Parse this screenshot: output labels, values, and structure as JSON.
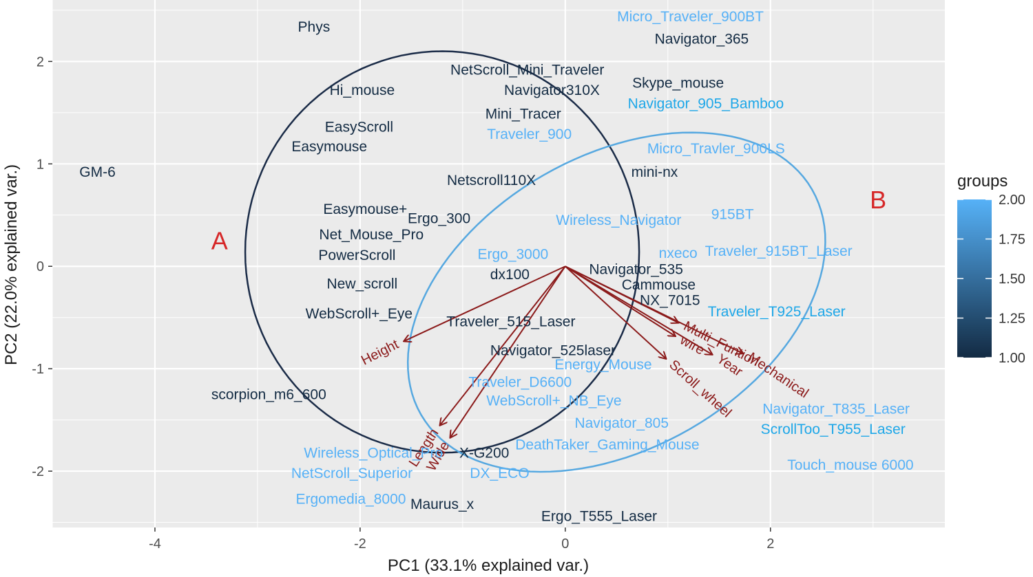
{
  "chart_data": {
    "type": "scatter",
    "subtype": "pca-biplot",
    "xlabel": "PC1 (33.1% explained var.)",
    "ylabel": "PC2 (22.0% explained var.)",
    "xlim": [
      -5.0,
      3.7
    ],
    "ylim": [
      -2.55,
      2.6
    ],
    "x_ticks": [
      -4,
      -2,
      0,
      2
    ],
    "x_tick_labels": [
      "-4",
      "-2",
      "0",
      "2"
    ],
    "y_ticks": [
      -2,
      -1,
      0,
      1,
      2
    ],
    "y_tick_labels": [
      "-2",
      "-1",
      "0",
      "1",
      "2"
    ],
    "grid": true,
    "points": [
      {
        "label": "Phys",
        "x": -2.45,
        "y": 2.33,
        "group": 1.0
      },
      {
        "label": "Micro_Traveler_900BT",
        "x": 1.22,
        "y": 2.43,
        "group": 2.0
      },
      {
        "label": "Navigator_365",
        "x": 1.33,
        "y": 2.21,
        "group": 1.0
      },
      {
        "label": "NetScroll_Mini_Traveler",
        "x": -0.37,
        "y": 1.91,
        "group": 1.0
      },
      {
        "label": "Hi_mouse",
        "x": -1.98,
        "y": 1.71,
        "group": 1.0
      },
      {
        "label": "Navigator310X",
        "x": -0.13,
        "y": 1.71,
        "group": 1.0
      },
      {
        "label": "Skype_mouse",
        "x": 1.1,
        "y": 1.78,
        "group": 1.0
      },
      {
        "label": "Mini_Tracer",
        "x": -0.41,
        "y": 1.48,
        "group": 1.0
      },
      {
        "label": "Navigator_905_Bamboo",
        "x": 1.37,
        "y": 1.58,
        "group": 2.0
      },
      {
        "label": "EasyScroll",
        "x": -2.01,
        "y": 1.35,
        "group": 1.0
      },
      {
        "label": "Easymouse",
        "x": -2.3,
        "y": 1.16,
        "group": 1.0
      },
      {
        "label": "Traveler_900",
        "x": -0.35,
        "y": 1.28,
        "group": 2.0
      },
      {
        "label": "Micro_Travler_900LS",
        "x": 1.47,
        "y": 1.14,
        "group": 2.0
      },
      {
        "label": "GM-6",
        "x": -4.56,
        "y": 0.91,
        "group": 1.0
      },
      {
        "label": "mini-nx",
        "x": 0.87,
        "y": 0.91,
        "group": 1.0
      },
      {
        "label": "Netscroll110X",
        "x": -0.72,
        "y": 0.83,
        "group": 1.0
      },
      {
        "label": "Easymouse+",
        "x": -1.95,
        "y": 0.55,
        "group": 1.0
      },
      {
        "label": "915BT",
        "x": 1.63,
        "y": 0.5,
        "group": 2.0
      },
      {
        "label": "Ergo_300",
        "x": -1.23,
        "y": 0.46,
        "group": 1.0
      },
      {
        "label": "Wireless_Navigator",
        "x": 0.52,
        "y": 0.44,
        "group": 2.0
      },
      {
        "label": "Net_Mouse_Pro",
        "x": -1.89,
        "y": 0.3,
        "group": 1.0
      },
      {
        "label": "PowerScroll",
        "x": -2.03,
        "y": 0.1,
        "group": 1.0
      },
      {
        "label": "Ergo_3000",
        "x": -0.51,
        "y": 0.11,
        "group": 2.0
      },
      {
        "label": "nxeco",
        "x": 1.1,
        "y": 0.12,
        "group": 2.0
      },
      {
        "label": "Traveler_915BT_Laser",
        "x": 2.08,
        "y": 0.14,
        "group": 2.0
      },
      {
        "label": "Navigator_535",
        "x": 0.69,
        "y": -0.04,
        "group": 1.0
      },
      {
        "label": "dx100",
        "x": -0.54,
        "y": -0.09,
        "group": 1.0
      },
      {
        "label": "New_scroll",
        "x": -1.98,
        "y": -0.18,
        "group": 1.0
      },
      {
        "label": "Cammouse",
        "x": 0.91,
        "y": -0.19,
        "group": 1.0
      },
      {
        "label": "NX_7015",
        "x": 1.02,
        "y": -0.34,
        "group": 1.0
      },
      {
        "label": "WebScroll+_Eye",
        "x": -2.01,
        "y": -0.47,
        "group": 1.0
      },
      {
        "label": "Traveler_T925_Laser",
        "x": 2.06,
        "y": -0.45,
        "group": 2.0
      },
      {
        "label": "Traveler_515_Laser",
        "x": -0.53,
        "y": -0.55,
        "group": 1.0
      },
      {
        "label": "Navigator_525laser",
        "x": -0.12,
        "y": -0.83,
        "group": 1.0
      },
      {
        "label": "Energy_Mouse",
        "x": 0.37,
        "y": -0.97,
        "group": 2.0
      },
      {
        "label": "Traveler_D6600",
        "x": -0.44,
        "y": -1.14,
        "group": 2.0
      },
      {
        "label": "scorpion_m6_600",
        "x": -2.89,
        "y": -1.26,
        "group": 1.0
      },
      {
        "label": "WebScroll+_NB_Eye",
        "x": -0.11,
        "y": -1.32,
        "group": 2.0
      },
      {
        "label": "Navigator_805",
        "x": 0.55,
        "y": -1.54,
        "group": 2.0
      },
      {
        "label": "Navigator_T835_Laser",
        "x": 2.64,
        "y": -1.4,
        "group": 2.0
      },
      {
        "label": "ScrollToo_T955_Laser",
        "x": 2.61,
        "y": -1.6,
        "group": 2.0
      },
      {
        "label": "DeathTaker_Gaming_Mouse",
        "x": 0.41,
        "y": -1.75,
        "group": 2.0
      },
      {
        "label": "Wireless_Optical_Pro",
        "x": -1.87,
        "y": -1.83,
        "group": 2.0
      },
      {
        "label": "X-G200",
        "x": -0.79,
        "y": -1.83,
        "group": 1.0
      },
      {
        "label": "NetScroll_Superior",
        "x": -2.08,
        "y": -2.03,
        "group": 2.0
      },
      {
        "label": "DX_ECO",
        "x": -0.64,
        "y": -2.03,
        "group": 2.0
      },
      {
        "label": "Touch_mouse 6000",
        "x": 2.78,
        "y": -1.95,
        "group": 2.0
      },
      {
        "label": "Ergomedia_8000",
        "x": -2.09,
        "y": -2.28,
        "group": 2.0
      },
      {
        "label": "Maurus_x",
        "x": -1.2,
        "y": -2.33,
        "group": 1.0
      },
      {
        "label": "Ergo_T555_Laser",
        "x": 0.33,
        "y": -2.45,
        "group": 1.0
      }
    ],
    "vectors": [
      {
        "label": "Height",
        "x": -1.57,
        "y": -0.73,
        "label_angle": -27
      },
      {
        "label": "Length",
        "x": -1.22,
        "y": -1.55,
        "label_angle": -57
      },
      {
        "label": "Wide",
        "x": -1.12,
        "y": -1.67,
        "label_angle": -60
      },
      {
        "label": "wire",
        "x": 1.07,
        "y": -0.68,
        "label_angle": 29
      },
      {
        "label": "Scroll_wheel",
        "x": 0.98,
        "y": -0.9,
        "label_angle": 42
      },
      {
        "label": "Multi_Funtion",
        "x": 1.1,
        "y": -0.55,
        "label_angle": 27
      },
      {
        "label": "Year",
        "x": 1.43,
        "y": -0.86,
        "label_angle": 35
      },
      {
        "label": "Mechanical",
        "x": 1.73,
        "y": -0.85,
        "label_angle": 34
      }
    ],
    "group_labels": [
      {
        "label": "A",
        "x": -3.37,
        "y": 0.23,
        "group": 1.0
      },
      {
        "label": "B",
        "x": 3.05,
        "y": 0.63,
        "group": 2.0
      }
    ],
    "ellipses": [
      {
        "group": 1.0,
        "cx": -1.2,
        "cy": 0.14,
        "rx": 1.92,
        "ry": 1.96,
        "angle": 0
      },
      {
        "group": 2.0,
        "cx": 0.5,
        "cy": -0.35,
        "rx": 2.2,
        "ry": 1.43,
        "angle": 30
      }
    ],
    "legend": {
      "title": "groups",
      "position": "right",
      "ticks": [
        "2.00",
        "1.75",
        "1.50",
        "1.25",
        "1.00"
      ],
      "tick_values": [
        2.0,
        1.75,
        1.5,
        1.25,
        1.0
      ],
      "range": [
        1.0,
        2.0
      ],
      "low_color": "#132b43",
      "high_color": "#56b1f7"
    },
    "colors": {
      "panel_bg": "#ebebeb",
      "grid": "#ffffff",
      "vector": "#8b1a1a",
      "group_A_ellipse": "#1a2b47",
      "group_B_ellipse": "#56a8e0",
      "group_label": "#d62728",
      "highlight_blue": "#1ea7e8"
    },
    "highlighted_labels": [
      "Navigator_905_Bamboo",
      "Traveler_T925_Laser",
      "ScrollToo_T955_Laser"
    ]
  }
}
